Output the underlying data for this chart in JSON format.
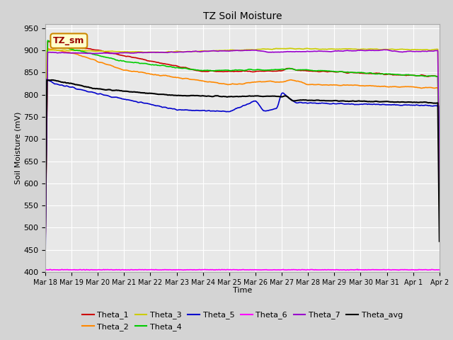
{
  "title": "TZ Soil Moisture",
  "xlabel": "Time",
  "ylabel": "Soil Moisture (mV)",
  "ylim": [
    400,
    960
  ],
  "yticks": [
    400,
    450,
    500,
    550,
    600,
    650,
    700,
    750,
    800,
    850,
    900,
    950
  ],
  "fig_bg": "#d4d4d4",
  "plot_bg": "#e8e8e8",
  "grid_color": "#ffffff",
  "legend_label": "TZ_sm",
  "series_colors": {
    "Theta_1": "#cc0000",
    "Theta_2": "#ff8800",
    "Theta_3": "#cccc00",
    "Theta_4": "#00cc00",
    "Theta_5": "#0000cc",
    "Theta_6": "#ff00ff",
    "Theta_7": "#9900cc",
    "Theta_avg": "#000000"
  },
  "tick_labels": [
    "Mar 18",
    "Mar 19",
    "Mar 20",
    "Mar 21",
    "Mar 22",
    "Mar 23",
    "Mar 24",
    "Mar 25",
    "Mar 26",
    "Mar 27",
    "Mar 28",
    "Mar 29",
    "Mar 30",
    "Mar 31",
    "Apr 1",
    "Apr 2"
  ],
  "legend_row1": [
    "Theta_1",
    "Theta_2",
    "Theta_3",
    "Theta_4",
    "Theta_5",
    "Theta_6"
  ],
  "legend_row2": [
    "Theta_7",
    "Theta_avg"
  ]
}
